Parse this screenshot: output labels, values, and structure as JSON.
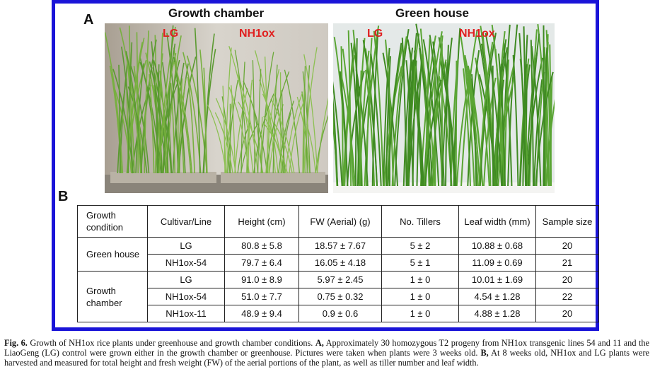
{
  "figure": {
    "panel_a_label": "A",
    "panel_b_label": "B",
    "photos": [
      {
        "title": "Growth chamber",
        "labels": [
          "LG",
          "NH1ox"
        ]
      },
      {
        "title": "Green house",
        "labels": [
          "LG",
          "NH1ox"
        ]
      }
    ]
  },
  "table": {
    "headers": {
      "condition": "Growth condition",
      "cultivar": "Cultivar/Line",
      "height": "Height (cm)",
      "fw": "FW (Aerial) (g)",
      "tillers": "No. Tillers",
      "leaf_width": "Leaf width (mm)",
      "sample_size": "Sample size"
    },
    "groups": [
      {
        "condition": "Green house",
        "rows": [
          {
            "line": "LG",
            "height": "80.8 ± 5.8",
            "fw": "18.57 ± 7.67",
            "tillers": "5 ± 2",
            "leaf_width": "10.88 ± 0.68",
            "n": "20"
          },
          {
            "line": "NH1ox-54",
            "height": "79.7 ± 6.4",
            "fw": "16.05 ± 4.18",
            "tillers": "5 ± 1",
            "leaf_width": "11.09 ± 0.69",
            "n": "21"
          }
        ]
      },
      {
        "condition": "Growth chamber",
        "rows": [
          {
            "line": "LG",
            "height": "91.0 ± 8.9",
            "fw": "5.97 ± 2.45",
            "tillers": "1 ± 0",
            "leaf_width": "10.01 ± 1.69",
            "n": "20"
          },
          {
            "line": "NH1ox-54",
            "height": "51.0 ± 7.7",
            "fw": "0.75 ± 0.32",
            "tillers": "1 ± 0",
            "leaf_width": "4.54 ± 1.28",
            "n": "22"
          },
          {
            "line": "NH1ox-11",
            "height": "48.9 ± 9.4",
            "fw": "0.9 ± 0.6",
            "tillers": "1 ± 0",
            "leaf_width": "4.88 ± 1.28",
            "n": "20"
          }
        ]
      }
    ]
  },
  "caption": {
    "fig_label": "Fig. 6.",
    "intro": " Growth of NH1ox rice plants under greenhouse and growth chamber conditions. ",
    "a_label": "A,",
    "a_text": " Approximately 30 homozygous T2 progeny from NH1ox transgenic lines 54 and 11 and the LiaoGeng (LG) control were grown either in the growth chamber or greenhouse. Pictures were taken when plants were 3 weeks old. ",
    "b_label": "B,",
    "b_text": " At 8 weeks old, NH1ox and LG plants were harvested and measured for total height and fresh weight (FW) of the aerial portions of the plant, as well as tiller number and leaf width."
  },
  "colors": {
    "frame_blue": "#1a14d8",
    "label_red": "#e02020",
    "chamber_wall": "#c9c4bc",
    "greenhouse_bg": "#e6eaea",
    "leaf_green": "#4f8f2a"
  }
}
